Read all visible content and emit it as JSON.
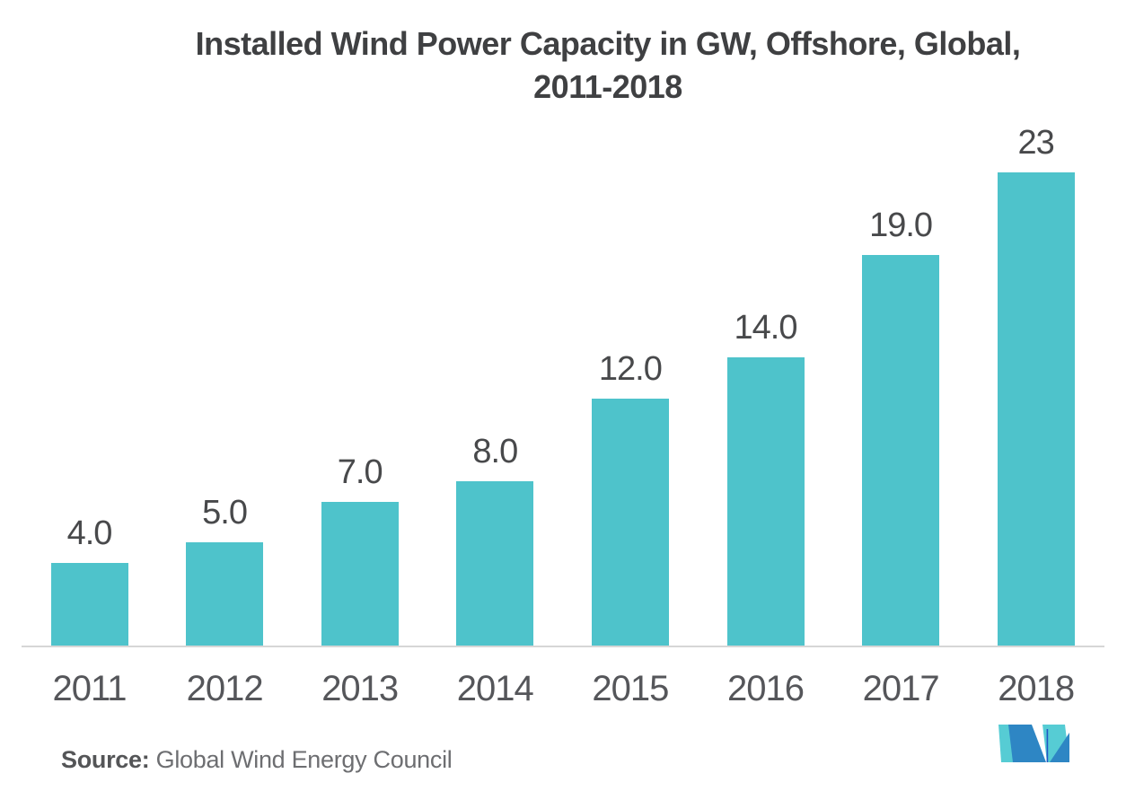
{
  "title": "Installed Wind Power Capacity in GW, Offshore, Global, 2011-2018",
  "title_lines": {
    "line1": "Installed Wind Power Capacity in GW, Offshore, Global,",
    "line2": "2011-2018"
  },
  "source": {
    "label": "Source:",
    "text": " Global Wind Energy Council"
  },
  "logo": {
    "name": "mordor-intelligence-logo",
    "teal": "#56CCD4",
    "blue": "#2E86C4",
    "accent": "#2257C5"
  },
  "colors": {
    "background": "#FFFFFF",
    "bar": "#4EC3CB",
    "axis": "#D6D6D6",
    "title_text": "#3F4042",
    "value_text": "#48494B",
    "year_text": "#55565A",
    "source_label": "#545557",
    "source_text": "#6D6E71"
  },
  "chart_data": {
    "type": "bar",
    "title": "Installed Wind Power Capacity in GW, Offshore, Global, 2011-2018",
    "categories": [
      "2011",
      "2012",
      "2013",
      "2014",
      "2015",
      "2016",
      "2017",
      "2018"
    ],
    "values": [
      4.0,
      5.0,
      7.0,
      8.0,
      12.0,
      14.0,
      19.0,
      23
    ],
    "value_labels": [
      "4.0",
      "5.0",
      "7.0",
      "8.0",
      "12.0",
      "14.0",
      "19.0",
      "23"
    ],
    "unit": "GW",
    "xlabel": "",
    "ylabel": "",
    "ylim": [
      0,
      23
    ],
    "grid": false,
    "legend": null,
    "y_axis_visible": false,
    "bar_color": "#4EC3CB",
    "source": "Global Wind Energy Council"
  }
}
